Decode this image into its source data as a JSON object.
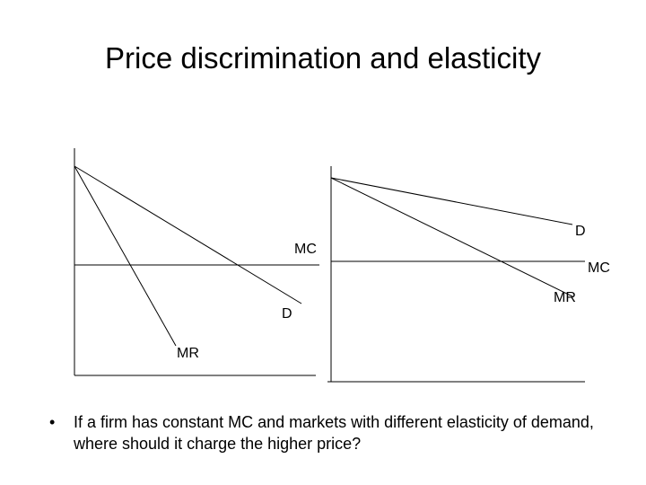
{
  "title": "Price discrimination and elasticity",
  "graphs": [
    {
      "labels": {
        "mc": "MC",
        "d": "D",
        "mr": "MR"
      }
    },
    {
      "labels": {
        "mc": "MC",
        "d": "D",
        "mr": "MR"
      }
    }
  ],
  "bullet": "If a firm has constant MC and markets with different elasticity of demand, where should it charge the higher price?"
}
